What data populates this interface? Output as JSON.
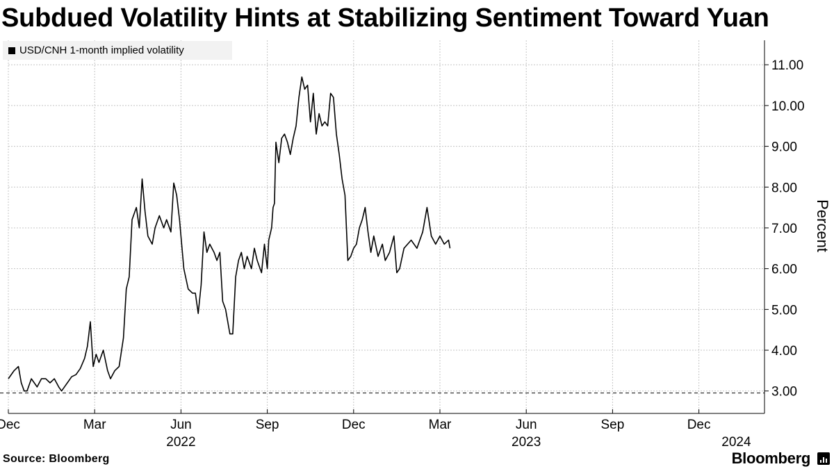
{
  "header": {
    "title": "Subdued Volatility Hints at Stabilizing Sentiment Toward Yuan"
  },
  "footer": {
    "source": "Source: Bloomberg",
    "brand": "Bloomberg",
    "brand_icon": "bloomberg-terminal-icon"
  },
  "chart_data": {
    "type": "line",
    "title": "Subdued Volatility Hints at Stabilizing Sentiment Toward Yuan",
    "ylabel": "Percent",
    "xlabel": "",
    "ylim": [
      2.45,
      11.6
    ],
    "yticks": [
      "3.00",
      "4.00",
      "5.00",
      "6.00",
      "7.00",
      "8.00",
      "9.00",
      "10.00",
      "11.00"
    ],
    "ytick_values": [
      3,
      4,
      5,
      6,
      7,
      8,
      9,
      10,
      11
    ],
    "x_range_months": [
      0,
      15.35
    ],
    "xticks": [
      {
        "label": "Dec",
        "month": 0
      },
      {
        "label": "Mar",
        "month": 3
      },
      {
        "label": "Jun",
        "month": 6
      },
      {
        "label": "Sep",
        "month": 9
      },
      {
        "label": "Dec",
        "month": 12
      },
      {
        "label": "Mar",
        "month": 15
      },
      {
        "label": "Jun",
        "month": 18
      },
      {
        "label": "Sep",
        "month": 21
      },
      {
        "label": "Dec",
        "month": 24
      }
    ],
    "year_labels": [
      {
        "label": "2022",
        "month": 6
      },
      {
        "label": "2023",
        "month": 18
      },
      {
        "label": "2024",
        "month": 25.3
      }
    ],
    "reference_line": {
      "value": 2.95,
      "style": "dashed"
    },
    "grid": true,
    "series": [
      {
        "name": "USD/CNH 1-month implied volatility",
        "color": "#000000",
        "points": [
          [
            0.0,
            3.3
          ],
          [
            0.2,
            3.5
          ],
          [
            0.35,
            3.6
          ],
          [
            0.45,
            3.2
          ],
          [
            0.55,
            3.0
          ],
          [
            0.65,
            3.0
          ],
          [
            0.8,
            3.3
          ],
          [
            0.9,
            3.2
          ],
          [
            1.0,
            3.1
          ],
          [
            1.15,
            3.3
          ],
          [
            1.3,
            3.3
          ],
          [
            1.45,
            3.2
          ],
          [
            1.6,
            3.3
          ],
          [
            1.75,
            3.1
          ],
          [
            1.85,
            3.0
          ],
          [
            1.95,
            3.1
          ],
          [
            2.05,
            3.2
          ],
          [
            2.2,
            3.35
          ],
          [
            2.35,
            3.4
          ],
          [
            2.5,
            3.55
          ],
          [
            2.65,
            3.8
          ],
          [
            2.75,
            4.1
          ],
          [
            2.85,
            4.7
          ],
          [
            2.95,
            3.6
          ],
          [
            3.05,
            3.9
          ],
          [
            3.15,
            3.7
          ],
          [
            3.3,
            4.0
          ],
          [
            3.45,
            3.5
          ],
          [
            3.55,
            3.3
          ],
          [
            3.7,
            3.5
          ],
          [
            3.85,
            3.6
          ],
          [
            4.0,
            4.3
          ],
          [
            4.1,
            5.5
          ],
          [
            4.2,
            5.8
          ],
          [
            4.3,
            7.2
          ],
          [
            4.45,
            7.5
          ],
          [
            4.55,
            7.0
          ],
          [
            4.65,
            8.2
          ],
          [
            4.75,
            7.4
          ],
          [
            4.85,
            6.8
          ],
          [
            5.0,
            6.6
          ],
          [
            5.1,
            7.0
          ],
          [
            5.25,
            7.3
          ],
          [
            5.4,
            7.0
          ],
          [
            5.5,
            7.2
          ],
          [
            5.65,
            6.9
          ],
          [
            5.75,
            8.1
          ],
          [
            5.85,
            7.8
          ],
          [
            5.95,
            7.2
          ],
          [
            6.1,
            6.0
          ],
          [
            6.25,
            5.5
          ],
          [
            6.4,
            5.4
          ],
          [
            6.5,
            5.4
          ],
          [
            6.6,
            4.9
          ],
          [
            6.7,
            5.6
          ],
          [
            6.8,
            6.9
          ],
          [
            6.9,
            6.4
          ],
          [
            7.0,
            6.6
          ],
          [
            7.15,
            6.4
          ],
          [
            7.25,
            6.2
          ],
          [
            7.35,
            6.4
          ],
          [
            7.45,
            5.2
          ],
          [
            7.55,
            5.0
          ],
          [
            7.7,
            4.4
          ],
          [
            7.8,
            4.4
          ],
          [
            7.9,
            5.8
          ],
          [
            8.0,
            6.2
          ],
          [
            8.1,
            6.4
          ],
          [
            8.2,
            6.0
          ],
          [
            8.3,
            6.3
          ],
          [
            8.45,
            6.0
          ],
          [
            8.55,
            6.5
          ],
          [
            8.65,
            6.2
          ],
          [
            8.8,
            5.9
          ],
          [
            8.9,
            6.6
          ],
          [
            9.0,
            6.0
          ],
          [
            9.05,
            6.7
          ],
          [
            9.15,
            7.0
          ],
          [
            9.2,
            7.5
          ],
          [
            9.25,
            7.6
          ],
          [
            9.3,
            9.1
          ],
          [
            9.4,
            8.6
          ],
          [
            9.5,
            9.2
          ],
          [
            9.6,
            9.3
          ],
          [
            9.7,
            9.1
          ],
          [
            9.8,
            8.8
          ],
          [
            9.9,
            9.2
          ],
          [
            10.0,
            9.5
          ],
          [
            10.1,
            10.2
          ],
          [
            10.2,
            10.7
          ],
          [
            10.3,
            10.4
          ],
          [
            10.4,
            10.5
          ],
          [
            10.5,
            9.6
          ],
          [
            10.6,
            10.3
          ],
          [
            10.7,
            9.3
          ],
          [
            10.8,
            9.8
          ],
          [
            10.9,
            9.5
          ],
          [
            11.0,
            9.6
          ],
          [
            11.1,
            9.5
          ],
          [
            11.2,
            10.3
          ],
          [
            11.3,
            10.2
          ],
          [
            11.4,
            9.3
          ],
          [
            11.5,
            8.8
          ],
          [
            11.6,
            8.2
          ],
          [
            11.7,
            7.8
          ],
          [
            11.8,
            6.2
          ],
          [
            11.9,
            6.3
          ],
          [
            12.0,
            6.5
          ],
          [
            12.1,
            6.6
          ],
          [
            12.2,
            7.0
          ],
          [
            12.3,
            7.2
          ],
          [
            12.4,
            7.5
          ],
          [
            12.5,
            6.9
          ],
          [
            12.6,
            6.4
          ],
          [
            12.7,
            6.8
          ],
          [
            12.85,
            6.3
          ],
          [
            13.0,
            6.6
          ],
          [
            13.1,
            6.2
          ],
          [
            13.25,
            6.4
          ],
          [
            13.4,
            6.8
          ],
          [
            13.5,
            5.9
          ],
          [
            13.6,
            6.0
          ],
          [
            13.75,
            6.5
          ],
          [
            14.0,
            6.7
          ],
          [
            14.2,
            6.5
          ],
          [
            14.4,
            6.9
          ],
          [
            14.55,
            7.5
          ],
          [
            14.7,
            6.8
          ],
          [
            14.85,
            6.6
          ],
          [
            15.0,
            6.8
          ],
          [
            15.15,
            6.6
          ],
          [
            15.3,
            6.7
          ],
          [
            15.35,
            6.5
          ]
        ]
      }
    ]
  }
}
